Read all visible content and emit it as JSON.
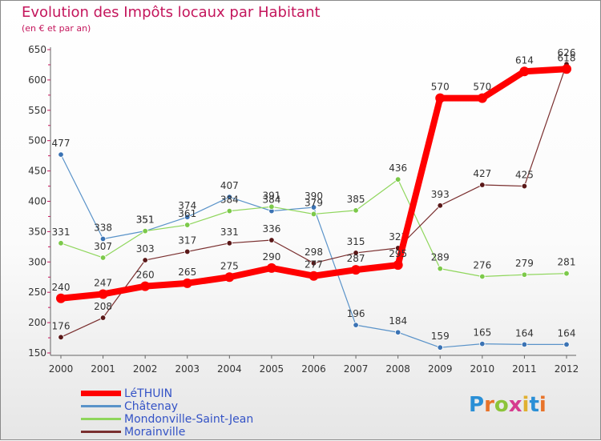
{
  "title": "Evolution des Impôts locaux par Habitant",
  "subtitle": "(en € et par an)",
  "logo": {
    "text": "Proxiti",
    "letter_colors": [
      "#2a8fd6",
      "#e8732a",
      "#8cc43a",
      "#d63c8f",
      "#e0b030",
      "#2a8fd6",
      "#e8732a"
    ]
  },
  "chart_data": {
    "type": "line",
    "title": "Evolution des Impôts locaux par Habitant",
    "subtitle": "(en € et par an)",
    "x": [
      "2000",
      "2001",
      "2002",
      "2003",
      "2004",
      "2005",
      "2006",
      "2007",
      "2008",
      "2009",
      "2010",
      "2011",
      "2012"
    ],
    "ylim": [
      150,
      650
    ],
    "yticks": [
      150,
      200,
      250,
      300,
      350,
      400,
      450,
      500,
      550,
      600,
      650
    ],
    "grid": false,
    "legend_position": "bottom-left",
    "series": [
      {
        "name": "Châtenay",
        "color": "#5a93c9",
        "marker": "#3b73b4",
        "width": 1.2,
        "values": [
          477,
          338,
          351,
          374,
          407,
          384,
          390,
          196,
          184,
          159,
          165,
          164,
          164
        ],
        "labels": [
          "477",
          "338",
          "351",
          "374",
          "407",
          "384",
          "390",
          "196",
          "184",
          "159",
          "165",
          "164",
          "164"
        ]
      },
      {
        "name": "Mondonville-Saint-Jean",
        "color": "#8fd65c",
        "marker": "#7cc94a",
        "width": 1.2,
        "values": [
          331,
          307,
          351,
          361,
          384,
          391,
          379,
          385,
          436,
          289,
          276,
          279,
          281
        ],
        "labels": [
          "331",
          "307",
          "351",
          "361",
          "384",
          "391",
          "379",
          "385",
          "436",
          "289",
          "276",
          "279",
          "281"
        ]
      },
      {
        "name": "Morainville",
        "color": "#7a2f2f",
        "marker": "#5a1818",
        "width": 1.2,
        "values": [
          176,
          208,
          303,
          317,
          331,
          336,
          298,
          315,
          323,
          393,
          427,
          425,
          626
        ],
        "labels": [
          "176",
          "208",
          "303",
          "317",
          "331",
          "336",
          "298",
          "315",
          "323",
          "393",
          "427",
          "425",
          "626"
        ]
      },
      {
        "name": "LéTHUIN",
        "color": "#ff0000",
        "marker": "#ff0000",
        "width": 8,
        "values": [
          240,
          247,
          260,
          265,
          275,
          290,
          277,
          287,
          295,
          570,
          570,
          614,
          618
        ],
        "labels": [
          "240",
          "247",
          "260",
          "265",
          "275",
          "290",
          "277",
          "287",
          "295",
          "570",
          "570",
          "614",
          "618"
        ]
      }
    ],
    "legend_order": [
      "LéTHUIN",
      "Châtenay",
      "Mondonville-Saint-Jean",
      "Morainville"
    ]
  }
}
